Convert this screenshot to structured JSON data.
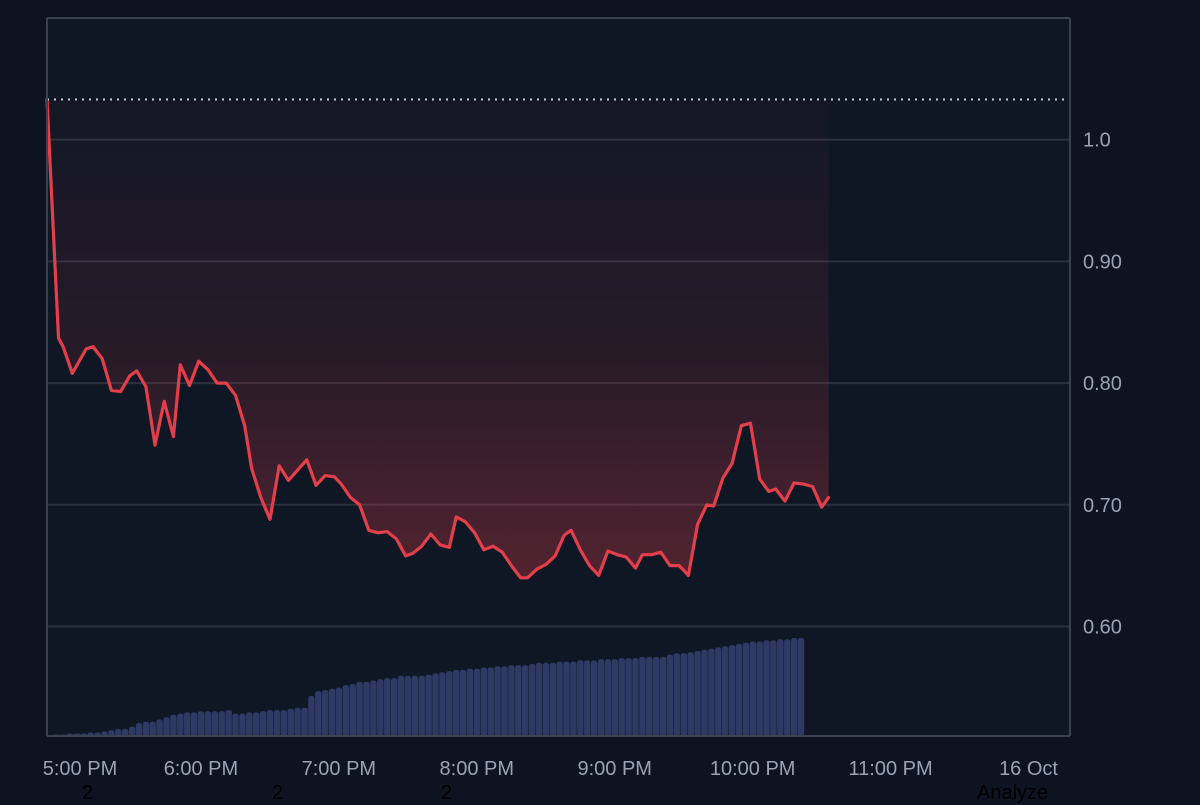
{
  "colors": {
    "background": "#0d1320",
    "plot_background": "#0f1624",
    "grid": "#2b313d",
    "axis": "#3a414f",
    "line": "#e23f4a",
    "fill_top": "#e23f4a",
    "volume": "#2e3a63",
    "reference_line": "#c9ced8",
    "tick_text": "#9aa3b3"
  },
  "footer_labels": [
    "2",
    "2",
    "2",
    "Analyze"
  ],
  "chart_data": {
    "type": "line",
    "title": "",
    "xlabel": "",
    "ylabel": "",
    "x_tick_labels": [
      "5:00 PM",
      "6:00 PM",
      "7:00 PM",
      "8:00 PM",
      "9:00 PM",
      "10:00 PM",
      "11:00 PM",
      "16 Oct"
    ],
    "x_tick_positions": [
      "17:00",
      "18:00",
      "19:00",
      "20:00",
      "21:00",
      "22:00",
      "23:00",
      "00:00"
    ],
    "x_range": [
      "17:00",
      "00:25"
    ],
    "y_ticks": [
      0.6,
      0.7,
      0.8,
      0.9,
      1.0
    ],
    "y_tick_labels": [
      "0.60",
      "0.70",
      "0.80",
      "0.90",
      "1.0"
    ],
    "ylim": [
      0.51,
      1.1
    ],
    "y_axis_position": "right",
    "grid": true,
    "reference_value": 1.033,
    "series": [
      {
        "points": [
          [
            "17:00",
            1.033
          ],
          [
            "17:05",
            0.837
          ],
          [
            "17:07",
            0.83
          ],
          [
            "17:11",
            0.808
          ],
          [
            "17:17",
            0.828
          ],
          [
            "17:20",
            0.83
          ],
          [
            "17:24",
            0.82
          ],
          [
            "17:28",
            0.794
          ],
          [
            "17:32",
            0.793
          ],
          [
            "17:36",
            0.806
          ],
          [
            "17:39",
            0.81
          ],
          [
            "17:43",
            0.797
          ],
          [
            "17:47",
            0.749
          ],
          [
            "17:51",
            0.785
          ],
          [
            "17:55",
            0.756
          ],
          [
            "17:58",
            0.815
          ],
          [
            "18:02",
            0.798
          ],
          [
            "18:06",
            0.818
          ],
          [
            "18:10",
            0.811
          ],
          [
            "18:14",
            0.8
          ],
          [
            "18:18",
            0.8
          ],
          [
            "18:22",
            0.79
          ],
          [
            "18:26",
            0.765
          ],
          [
            "18:29",
            0.73
          ],
          [
            "18:33",
            0.706
          ],
          [
            "18:37",
            0.688
          ],
          [
            "18:41",
            0.732
          ],
          [
            "18:45",
            0.72
          ],
          [
            "18:53",
            0.737
          ],
          [
            "18:57",
            0.716
          ],
          [
            "19:01",
            0.724
          ],
          [
            "19:05",
            0.723
          ],
          [
            "19:08",
            0.717
          ],
          [
            "19:12",
            0.706
          ],
          [
            "19:16",
            0.7
          ],
          [
            "19:20",
            0.679
          ],
          [
            "19:24",
            0.677
          ],
          [
            "19:28",
            0.678
          ],
          [
            "19:32",
            0.672
          ],
          [
            "19:36",
            0.658
          ],
          [
            "19:39",
            0.66
          ],
          [
            "19:43",
            0.666
          ],
          [
            "19:47",
            0.676
          ],
          [
            "19:51",
            0.667
          ],
          [
            "19:55",
            0.665
          ],
          [
            "19:58",
            0.69
          ],
          [
            "20:02",
            0.686
          ],
          [
            "20:06",
            0.677
          ],
          [
            "20:10",
            0.663
          ],
          [
            "20:14",
            0.666
          ],
          [
            "20:18",
            0.661
          ],
          [
            "20:22",
            0.65
          ],
          [
            "20:26",
            0.64
          ],
          [
            "20:29",
            0.64
          ],
          [
            "20:33",
            0.647
          ],
          [
            "20:37",
            0.651
          ],
          [
            "20:41",
            0.658
          ],
          [
            "20:45",
            0.675
          ],
          [
            "20:48",
            0.679
          ],
          [
            "20:52",
            0.663
          ],
          [
            "20:56",
            0.65
          ],
          [
            "21:00",
            0.642
          ],
          [
            "21:04",
            0.662
          ],
          [
            "21:08",
            0.659
          ],
          [
            "21:12",
            0.657
          ],
          [
            "21:16",
            0.648
          ],
          [
            "21:19",
            0.659
          ],
          [
            "21:23",
            0.659
          ],
          [
            "21:27",
            0.661
          ],
          [
            "21:31",
            0.65
          ],
          [
            "21:35",
            0.65
          ],
          [
            "21:39",
            0.642
          ],
          [
            "21:43",
            0.684
          ],
          [
            "21:47",
            0.7
          ],
          [
            "21:50",
            0.699
          ],
          [
            "21:54",
            0.722
          ],
          [
            "21:58",
            0.734
          ],
          [
            "22:02",
            0.765
          ],
          [
            "22:06",
            0.767
          ],
          [
            "22:10",
            0.721
          ],
          [
            "22:14",
            0.711
          ],
          [
            "22:17",
            0.713
          ],
          [
            "22:21",
            0.703
          ],
          [
            "22:25",
            0.718
          ],
          [
            "22:29",
            0.717
          ],
          [
            "22:33",
            0.715
          ],
          [
            "22:37",
            0.698
          ],
          [
            "22:40",
            0.706
          ]
        ]
      }
    ],
    "volume": {
      "start": "17:04",
      "step_minutes": 3,
      "values": [
        1,
        1,
        2,
        2,
        2,
        3,
        3,
        4,
        5,
        6,
        6,
        8,
        11,
        12,
        12,
        14,
        16,
        18,
        19,
        20,
        20,
        21,
        21,
        21,
        21,
        22,
        19,
        19,
        20,
        20,
        21,
        22,
        22,
        22,
        23,
        24,
        24,
        34,
        38,
        39,
        40,
        41,
        43,
        44,
        46,
        46,
        47,
        48,
        49,
        49,
        51,
        51,
        51,
        51,
        52,
        53,
        54,
        55,
        56,
        56,
        57,
        57,
        58,
        58,
        59,
        59,
        60,
        60,
        60,
        61,
        62,
        62,
        62,
        63,
        63,
        63,
        64,
        64,
        64,
        65,
        65,
        65,
        66,
        66,
        66,
        67,
        67,
        67,
        67,
        69,
        70,
        70,
        71,
        72,
        73,
        74,
        75,
        76,
        77,
        78,
        79,
        80,
        80,
        81,
        81,
        82,
        82,
        83,
        83
      ]
    }
  }
}
